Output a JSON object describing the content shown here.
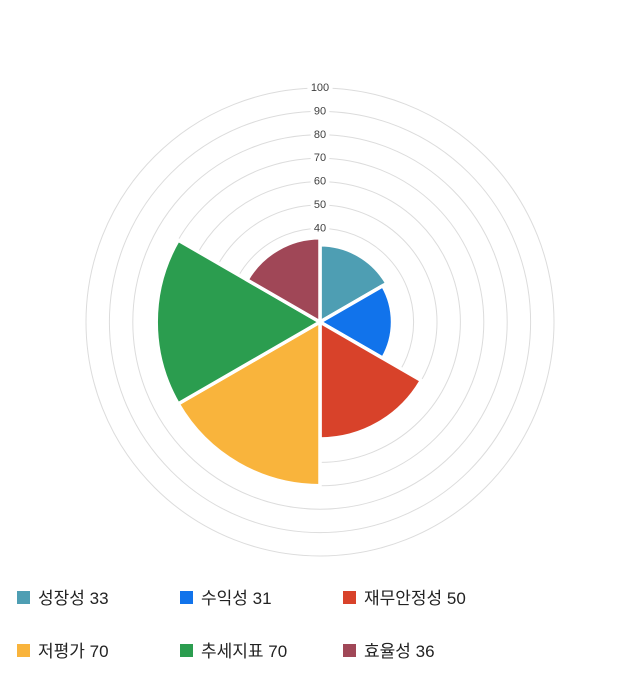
{
  "chart_data": {
    "type": "pie",
    "variant": "nightingale-rose-polar-area",
    "title": "",
    "categories": [
      "성장성",
      "수익성",
      "재무안정성",
      "저평가",
      "추세지표",
      "효율성"
    ],
    "values": [
      33,
      31,
      50,
      70,
      70,
      36
    ],
    "colors": [
      "#4e9eb3",
      "#1173eb",
      "#d8422a",
      "#f9b43c",
      "#2b9d4f",
      "#a04757"
    ],
    "start_angle_deg": 0,
    "sector_span_deg": 60,
    "axis": {
      "min": 0,
      "max": 100,
      "tick_values": [
        40,
        50,
        60,
        70,
        80,
        90,
        100
      ],
      "grid_step": 10,
      "grid_on": true
    },
    "legend_position": "bottom",
    "legend_labels": [
      "성장성 33",
      "수익성 31",
      "재무안정성 50",
      "저평가 70",
      "추세지표 70",
      "효율성 36"
    ]
  },
  "style": {
    "background": "#ffffff",
    "grid_color": "#dcdcdc",
    "tick_text_color": "#404040",
    "legend_text_color": "#222222",
    "sector_border_color": "#ffffff"
  }
}
